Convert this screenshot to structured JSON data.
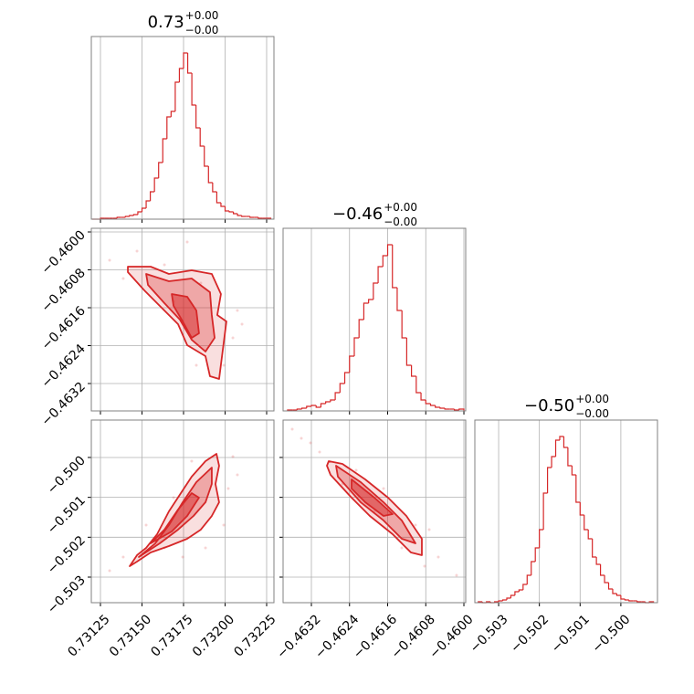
{
  "chart_data": [
    {
      "type": "histogram",
      "title": "0.73",
      "title_upper": "+0.00",
      "title_lower": "−0.00",
      "color": "#d62728",
      "grid": true,
      "show_xticklabels": false,
      "xlim": [
        0.731195,
        0.732294
      ],
      "ylim": [
        0,
        200
      ],
      "xticks": [
        0.73125,
        0.7315,
        0.73175,
        0.732,
        0.73225
      ],
      "bins": [
        0.7312,
        0.731225,
        0.73125,
        0.731275,
        0.7313,
        0.731325,
        0.73135,
        0.731375,
        0.7314,
        0.731425,
        0.73145,
        0.731475,
        0.7315,
        0.731525,
        0.73155,
        0.731575,
        0.7316,
        0.731625,
        0.73165,
        0.731675,
        0.7317,
        0.731725,
        0.73175,
        0.731775,
        0.7318,
        0.731825,
        0.73185,
        0.731875,
        0.7319,
        0.731925,
        0.73195,
        0.731975,
        0.732,
        0.732025,
        0.73205,
        0.732075,
        0.7321,
        0.732125,
        0.73215,
        0.732175,
        0.7322,
        0.732225,
        0.73225,
        0.732275
      ],
      "counts": [
        0,
        0,
        1,
        1,
        1,
        1,
        2,
        2,
        3,
        4,
        5,
        8,
        12,
        20,
        30,
        45,
        62,
        88,
        112,
        118,
        150,
        165,
        182,
        160,
        125,
        100,
        80,
        58,
        40,
        30,
        18,
        14,
        9,
        8,
        6,
        4,
        3,
        3,
        2,
        2,
        1,
        1,
        1
      ]
    },
    {
      "type": "contour",
      "color": "#d62728",
      "grid": true,
      "show_xticklabels": false,
      "show_yticklabels": true,
      "xlim": [
        0.731195,
        0.732294
      ],
      "ylim": [
        -0.463778,
        -0.459923
      ],
      "xticks": [
        0.73125,
        0.7315,
        0.73175,
        0.732,
        0.73225
      ],
      "yticks": [
        {
          "value": -0.46,
          "label": "−0.4600"
        },
        {
          "value": -0.4608,
          "label": "−0.4608"
        },
        {
          "value": -0.4616,
          "label": "−0.4616"
        },
        {
          "value": -0.4624,
          "label": "−0.4624"
        },
        {
          "value": -0.4632,
          "label": "−0.4632"
        }
      ],
      "samples": {
        "x": [
          0.731305,
          0.73147,
          0.731635,
          0.731772,
          0.731854,
          0.732074,
          0.732047,
          0.73169,
          0.731387,
          0.732102,
          0.731992,
          0.731827
        ],
        "y": [
          -0.460598,
          -0.460405,
          -0.460694,
          -0.460212,
          -0.46108,
          -0.461658,
          -0.462236,
          -0.461465,
          -0.460983,
          -0.461947,
          -0.462814,
          -0.462814
        ]
      },
      "contours": [
        {
          "x": [
            0.731415,
            0.731552,
            0.731662,
            0.731799,
            0.73192,
            0.731975,
            0.731953,
            0.732008,
            0.731992,
            0.731964,
            0.731909,
            0.731882,
            0.731772,
            0.731717,
            0.731607,
            0.731514,
            0.731415
          ],
          "y": [
            -0.460733,
            -0.460733,
            -0.460887,
            -0.46081,
            -0.460887,
            -0.461311,
            -0.461754,
            -0.461889,
            -0.462332,
            -0.463103,
            -0.463046,
            -0.462622,
            -0.46239,
            -0.461947,
            -0.461561,
            -0.461234,
            -0.460848
          ]
        },
        {
          "x": [
            0.731525,
            0.731662,
            0.731799,
            0.731909,
            0.73192,
            0.731937,
            0.731882,
            0.731799,
            0.731728,
            0.731635,
            0.731536
          ],
          "y": [
            -0.460887,
            -0.461041,
            -0.460983,
            -0.461272,
            -0.461754,
            -0.462236,
            -0.462525,
            -0.462275,
            -0.461851,
            -0.461504,
            -0.461118
          ]
        },
        {
          "x": [
            0.731679,
            0.731772,
            0.731827,
            0.731843,
            0.731799,
            0.731745,
            0.73169
          ],
          "y": [
            -0.461311,
            -0.461369,
            -0.461658,
            -0.46214,
            -0.462236,
            -0.461889,
            -0.461561
          ]
        }
      ]
    },
    {
      "type": "histogram",
      "title": "−0.46",
      "title_upper": "+0.00",
      "title_lower": "−0.00",
      "color": "#d62728",
      "grid": true,
      "show_xticklabels": false,
      "xlim": [
        -0.463794,
        -0.459962
      ],
      "ylim": [
        0,
        200
      ],
      "xticks": [
        -0.4632,
        -0.4624,
        -0.4616,
        -0.4608,
        -0.46
      ],
      "bins": [
        -0.4637,
        -0.4636,
        -0.4635,
        -0.4634,
        -0.4633,
        -0.4632,
        -0.4631,
        -0.463,
        -0.4629,
        -0.4628,
        -0.4627,
        -0.4626,
        -0.4625,
        -0.4624,
        -0.4623,
        -0.4622,
        -0.4621,
        -0.462,
        -0.4619,
        -0.4618,
        -0.4617,
        -0.4616,
        -0.4615,
        -0.4614,
        -0.4613,
        -0.4612,
        -0.4611,
        -0.461,
        -0.4609,
        -0.4608,
        -0.4607,
        -0.4606,
        -0.4605,
        -0.4604,
        -0.4603,
        -0.4602,
        -0.4601,
        -0.46
      ],
      "counts": [
        1,
        1,
        2,
        3,
        5,
        6,
        4,
        8,
        10,
        12,
        20,
        30,
        42,
        60,
        80,
        100,
        118,
        122,
        140,
        158,
        170,
        182,
        135,
        110,
        80,
        50,
        38,
        20,
        12,
        8,
        6,
        4,
        3,
        2,
        2,
        1,
        2
      ]
    },
    {
      "type": "contour",
      "color": "#d62728",
      "grid": true,
      "show_xticklabels": true,
      "show_yticklabels": true,
      "xlim": [
        0.731195,
        0.732294
      ],
      "ylim": [
        -0.503641,
        -0.499062
      ],
      "xticks": [
        0.73125,
        {
          "value": 0.7315,
          "label": "0.73150"
        },
        0.73175,
        {
          "value": 0.732,
          "label": "0.73200"
        },
        0.73225
      ],
      "yticks": [
        {
          "value": -0.5,
          "label": "−0.500"
        },
        {
          "value": -0.501,
          "label": "−0.501"
        },
        {
          "value": -0.502,
          "label": "−0.502"
        },
        {
          "value": -0.503,
          "label": "−0.503"
        }
      ],
      "samples": {
        "x": [
          0.731305,
          0.731387,
          0.731635,
          0.732019,
          0.732047,
          0.731799,
          0.731992,
          0.731525,
          0.73169,
          0.732074,
          0.731882,
          0.731745
        ],
        "y": [
          -0.50284,
          -0.502496,
          -0.502267,
          -0.500779,
          -0.499978,
          -0.500092,
          -0.501695,
          -0.501695,
          -0.501008,
          -0.500436,
          -0.502267,
          -0.502496
        ]
      },
      "contours": [
        {
          "x": [
            0.731426,
            0.73147,
            0.731525,
            0.731591,
            0.731662,
            0.731734,
            0.731799,
            0.731882,
            0.731948,
            0.731964,
            0.731942,
            0.731964,
            0.73192,
            0.731854,
            0.731772,
            0.731662,
            0.731552,
            0.73147
          ],
          "y": [
            -0.502725,
            -0.50245,
            -0.502267,
            -0.501924,
            -0.501352,
            -0.500894,
            -0.500482,
            -0.500092,
            -0.499909,
            -0.500207,
            -0.500665,
            -0.501123,
            -0.501466,
            -0.501809,
            -0.502038,
            -0.502222,
            -0.502382,
            -0.502611
          ]
        },
        {
          "x": [
            0.731481,
            0.73158,
            0.731662,
            0.731745,
            0.731827,
            0.73192,
            0.73192,
            0.731882,
            0.73181,
            0.731717,
            0.731607
          ],
          "y": [
            -0.502496,
            -0.502153,
            -0.501695,
            -0.501123,
            -0.500619,
            -0.500253,
            -0.500665,
            -0.501123,
            -0.501466,
            -0.501809,
            -0.502153
          ]
        },
        {
          "x": [
            0.731552,
            0.731635,
            0.731717,
            0.731799,
            0.731843,
            0.731772,
            0.731679
          ],
          "y": [
            -0.502153,
            -0.501809,
            -0.501306,
            -0.500894,
            -0.501008,
            -0.501466,
            -0.501855
          ]
        }
      ]
    },
    {
      "type": "contour",
      "color": "#d62728",
      "grid": true,
      "show_xticklabels": true,
      "show_yticklabels": false,
      "xlim": [
        -0.463794,
        -0.459962
      ],
      "ylim": [
        -0.503641,
        -0.499062
      ],
      "xticks": [
        {
          "value": -0.4632,
          "label": "−0.4632"
        },
        {
          "value": -0.4624,
          "label": "−0.4624"
        },
        {
          "value": -0.4616,
          "label": "−0.4616"
        },
        {
          "value": -0.4608,
          "label": "−0.4608"
        },
        {
          "value": -0.46,
          "label": "−0.4600"
        }
      ],
      "yticks": [
        -0.5,
        -0.501,
        -0.502,
        -0.503
      ],
      "samples": {
        "x": [
          -0.463602,
          -0.463219,
          -0.463028,
          -0.462261,
          -0.461686,
          -0.460728,
          -0.460537,
          -0.460824,
          -0.461303,
          -0.461878,
          -0.461016,
          -0.463411,
          -0.460154,
          -0.462549
        ],
        "y": [
          -0.499291,
          -0.499634,
          -0.499863,
          -0.500321,
          -0.500779,
          -0.501809,
          -0.502496,
          -0.502725,
          -0.502267,
          -0.501352,
          -0.501695,
          -0.49952,
          -0.502954,
          -0.500665
        ]
      },
      "contours": [
        {
          "x": [
            -0.462836,
            -0.462549,
            -0.46207,
            -0.461591,
            -0.461207,
            -0.460882,
            -0.460882,
            -0.461112,
            -0.461495,
            -0.461974,
            -0.462357,
            -0.462798,
            -0.462874
          ],
          "y": [
            -0.500092,
            -0.500161,
            -0.50055,
            -0.501008,
            -0.501466,
            -0.502038,
            -0.50245,
            -0.502382,
            -0.501924,
            -0.501466,
            -0.501008,
            -0.500436,
            -0.500207
          ]
        },
        {
          "x": [
            -0.462683,
            -0.462165,
            -0.461686,
            -0.461303,
            -0.461016,
            -0.461303,
            -0.461686,
            -0.462165,
            -0.462644
          ],
          "y": [
            -0.500207,
            -0.500619,
            -0.501123,
            -0.50158,
            -0.502153,
            -0.502038,
            -0.50158,
            -0.501123,
            -0.500482
          ]
        },
        {
          "x": [
            -0.462357,
            -0.461878,
            -0.461495,
            -0.461686,
            -0.46207,
            -0.462357
          ],
          "y": [
            -0.50055,
            -0.501008,
            -0.50142,
            -0.501466,
            -0.501123,
            -0.500779
          ]
        }
      ]
    },
    {
      "type": "histogram",
      "title": "−0.50",
      "title_upper": "+0.00",
      "title_lower": "−0.00",
      "color": "#d62728",
      "grid": true,
      "show_xticklabels": true,
      "xlim": [
        -0.503584,
        -0.499101
      ],
      "ylim": [
        0,
        200
      ],
      "xticks": [
        {
          "value": -0.503,
          "label": "−0.503"
        },
        {
          "value": -0.502,
          "label": "−0.502"
        },
        {
          "value": -0.501,
          "label": "−0.501"
        },
        {
          "value": -0.5,
          "label": "−0.500"
        }
      ],
      "bins": [
        -0.5035,
        -0.5034,
        -0.5033,
        -0.5032,
        -0.5031,
        -0.503,
        -0.5029,
        -0.5028,
        -0.5027,
        -0.5026,
        -0.5025,
        -0.5024,
        -0.5023,
        -0.5022,
        -0.5021,
        -0.502,
        -0.5019,
        -0.5018,
        -0.5017,
        -0.5016,
        -0.5015,
        -0.5014,
        -0.5013,
        -0.5012,
        -0.5011,
        -0.501,
        -0.5009,
        -0.5008,
        -0.5007,
        -0.5006,
        -0.5005,
        -0.5004,
        -0.5003,
        -0.5002,
        -0.5001,
        -0.5,
        -0.4999,
        -0.4998,
        -0.4997,
        -0.4996,
        -0.4995,
        -0.4994,
        -0.4993,
        -0.4992
      ],
      "counts": [
        1,
        0,
        1,
        0,
        1,
        2,
        3,
        5,
        8,
        12,
        14,
        20,
        30,
        45,
        60,
        80,
        120,
        148,
        160,
        178,
        182,
        170,
        150,
        140,
        110,
        96,
        80,
        70,
        50,
        42,
        30,
        22,
        15,
        10,
        8,
        4,
        3,
        2,
        2,
        1,
        1,
        0,
        1
      ]
    }
  ]
}
